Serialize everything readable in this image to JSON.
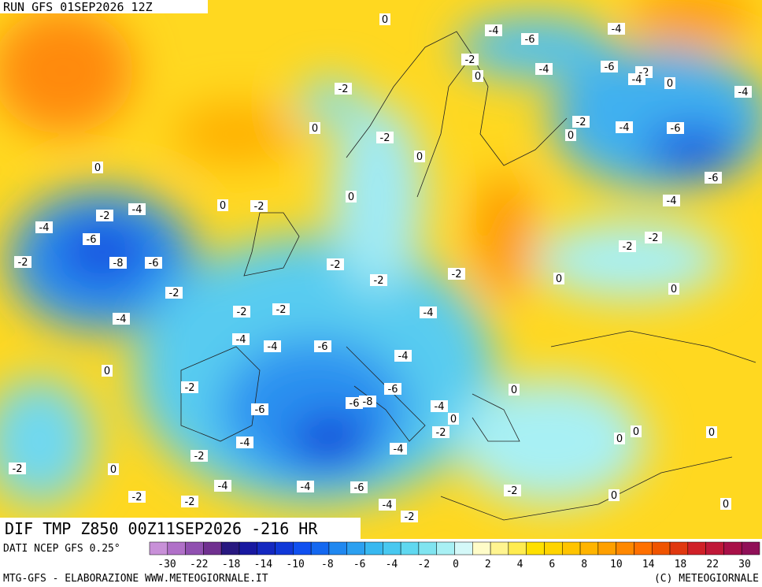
{
  "header": {
    "run": "RUN GFS 01SEP2026 12Z",
    "title": "DIF TMP Z850 00Z11SEP2026 -216 HR"
  },
  "map": {
    "labels": [
      0,
      -4,
      -6,
      -4,
      -2,
      -4,
      -6,
      -2,
      -4,
      0,
      0,
      -4,
      -2,
      0,
      -2,
      -4,
      0,
      -6,
      -2,
      0,
      0,
      -6,
      0,
      -4,
      0,
      -2,
      -4,
      -2,
      -4,
      -6,
      -2,
      -2,
      -2,
      -8,
      -6,
      -2,
      -2,
      -2,
      0,
      0,
      -2,
      -2,
      -2,
      -4,
      -4,
      -4,
      -4,
      -6,
      -4,
      0,
      -2,
      -6,
      0,
      -6,
      -6,
      -8,
      -4,
      -2,
      0,
      0,
      0,
      0,
      -4,
      -4,
      -2,
      0,
      -2,
      -4,
      -4,
      -6,
      -2,
      0,
      -2,
      -2,
      -4,
      0,
      -2
    ]
  },
  "legend": {
    "source": "DATI NCEP GFS 0.25°",
    "ticks": [
      -30,
      -22,
      -18,
      -14,
      -10,
      -8,
      -6,
      -4,
      -2,
      0,
      2,
      4,
      6,
      8,
      10,
      14,
      18,
      22,
      30
    ],
    "colors": [
      "#c890d8",
      "#b070c8",
      "#9050b0",
      "#703090",
      "#281880",
      "#1818a0",
      "#1428c0",
      "#1038d8",
      "#1050f0",
      "#1468f0",
      "#2088f0",
      "#2ca0f0",
      "#38b8f0",
      "#48c8f0",
      "#60d8f0",
      "#80e4f0",
      "#a8f0f4",
      "#d4f8f8",
      "#fffcc8",
      "#fff490",
      "#ffec50",
      "#ffe000",
      "#ffd400",
      "#ffc400",
      "#ffb400",
      "#ffa000",
      "#ff8800",
      "#ff7000",
      "#f05400",
      "#e03810",
      "#d02028",
      "#c01838",
      "#a81048",
      "#901058"
    ]
  },
  "footer": {
    "left": "MTG-GFS - ELABORAZIONE WWW.METEOGIORNALE.IT",
    "right": "(C) METEOGIORNALE"
  }
}
